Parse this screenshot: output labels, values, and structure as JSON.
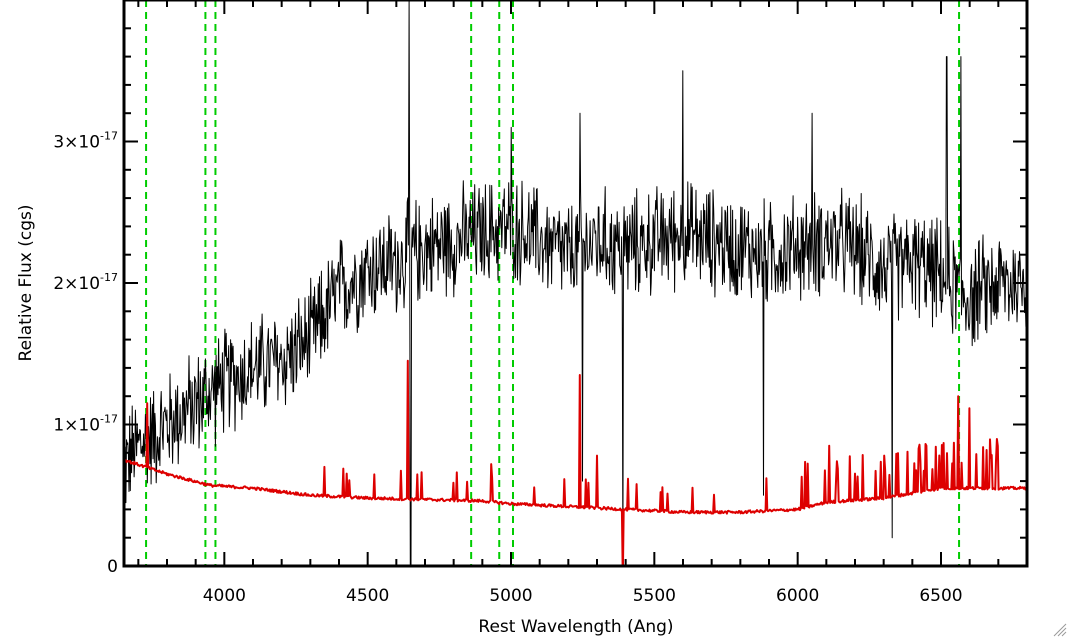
{
  "chart_data": {
    "type": "line",
    "xlabel": "Rest Wavelength (Ang)",
    "ylabel": "Relative Flux (cgs)",
    "xlim": [
      3650,
      6800
    ],
    "ylim": [
      0,
      4e-17
    ],
    "x_ticks": [
      {
        "value": 4000,
        "label": "4000"
      },
      {
        "value": 4500,
        "label": "4500"
      },
      {
        "value": 5000,
        "label": "5000"
      },
      {
        "value": 5500,
        "label": "5500"
      },
      {
        "value": 6000,
        "label": "6000"
      },
      {
        "value": 6500,
        "label": "6500"
      }
    ],
    "y_ticks": [
      {
        "value": 0,
        "mantissa": "0",
        "exponent": ""
      },
      {
        "value": 1e-17,
        "mantissa": "1×10",
        "exponent": "-17"
      },
      {
        "value": 2e-17,
        "mantissa": "2×10",
        "exponent": "-17"
      },
      {
        "value": 3e-17,
        "mantissa": "3×10",
        "exponent": "-17"
      }
    ],
    "grid": false,
    "line_markers": {
      "color": "#00cc00",
      "style": "dashed",
      "x": [
        3727,
        3934,
        3969,
        4861,
        4959,
        5007,
        6563
      ]
    },
    "series": [
      {
        "color": "#000000",
        "noise": 0.28,
        "anchors": [
          [
            3650,
            7e-18
          ],
          [
            3700,
            8.5e-18
          ],
          [
            3800,
            1e-17
          ],
          [
            3900,
            1.15e-17
          ],
          [
            4000,
            1.3e-17
          ],
          [
            4100,
            1.4e-17
          ],
          [
            4200,
            1.45e-17
          ],
          [
            4300,
            1.6e-17
          ],
          [
            4400,
            1.95e-17
          ],
          [
            4500,
            2.1e-17
          ],
          [
            4600,
            2.15e-17
          ],
          [
            4700,
            2.25e-17
          ],
          [
            4800,
            2.3e-17
          ],
          [
            4900,
            2.35e-17
          ],
          [
            5000,
            2.4e-17
          ],
          [
            5100,
            2.3e-17
          ],
          [
            5200,
            2.2e-17
          ],
          [
            5300,
            2.3e-17
          ],
          [
            5400,
            2.25e-17
          ],
          [
            5500,
            2.3e-17
          ],
          [
            5600,
            2.35e-17
          ],
          [
            5700,
            2.3e-17
          ],
          [
            5800,
            2.25e-17
          ],
          [
            5900,
            2.2e-17
          ],
          [
            6000,
            2.25e-17
          ],
          [
            6100,
            2.3e-17
          ],
          [
            6200,
            2.25e-17
          ],
          [
            6300,
            2.1e-17
          ],
          [
            6400,
            2.15e-17
          ],
          [
            6500,
            2.05e-17
          ],
          [
            6600,
            1.9e-17
          ],
          [
            6700,
            2e-17
          ],
          [
            6800,
            2e-17
          ]
        ],
        "spikes": [
          [
            4645,
            4e-17
          ],
          [
            4650,
            0.0
          ],
          [
            5000,
            3.1e-17
          ],
          [
            5240,
            3.2e-17
          ],
          [
            5250,
            6e-18
          ],
          [
            5390,
            0.0
          ],
          [
            5600,
            3.5e-17
          ],
          [
            5880,
            5e-18
          ],
          [
            6050,
            3.2e-17
          ],
          [
            6330,
            2e-18
          ],
          [
            6520,
            3.6e-17
          ],
          [
            6570,
            3.6e-17
          ]
        ]
      },
      {
        "color": "#dd0000",
        "anchors": [
          [
            3650,
            7.5e-18
          ],
          [
            3800,
            6.5e-18
          ],
          [
            3950,
            5.7e-18
          ],
          [
            4100,
            5.5e-18
          ],
          [
            4300,
            5e-18
          ],
          [
            4500,
            4.8e-18
          ],
          [
            4700,
            4.7e-18
          ],
          [
            4900,
            4.6e-18
          ],
          [
            5000,
            4.4e-18
          ],
          [
            5200,
            4.2e-18
          ],
          [
            5400,
            4e-18
          ],
          [
            5600,
            3.8e-18
          ],
          [
            5800,
            3.8e-18
          ],
          [
            6000,
            4e-18
          ],
          [
            6100,
            4.5e-18
          ],
          [
            6300,
            4.8e-18
          ],
          [
            6500,
            5.5e-18
          ],
          [
            6700,
            5.5e-18
          ],
          [
            6800,
            5.5e-18
          ]
        ],
        "spikes": [
          [
            3730,
            1.15e-17
          ],
          [
            4640,
            1.45e-17
          ],
          [
            5240,
            1.35e-17
          ],
          [
            5390,
            -1e-18
          ],
          [
            6560,
            1.2e-17
          ],
          [
            6110,
            8.5e-18
          ],
          [
            6450,
            8.5e-18
          ],
          [
            6600,
            8e-18
          ],
          [
            4350,
            7e-18
          ],
          [
            4930,
            7.2e-18
          ],
          [
            5300,
            7.8e-18
          ],
          [
            5890,
            6.2e-18
          ]
        ]
      }
    ]
  },
  "corner_icon": "resize-grip-icon"
}
